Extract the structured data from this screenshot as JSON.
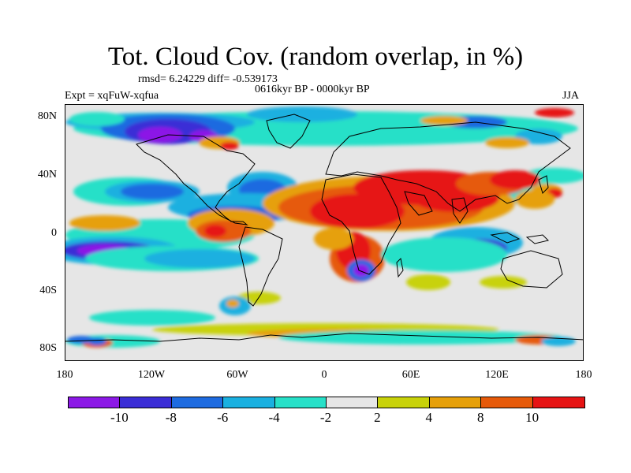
{
  "title": "Tot. Cloud Cov. (random overlap, in %)",
  "stats": "rmsd= 6.24229 diff= -0.539173",
  "period": "0616kyr BP - 0000kyr BP",
  "expt": "Expt = xqFuW-xqfua",
  "season": "JJA",
  "lat_labels": [
    "80N",
    "40N",
    "0",
    "40S",
    "80S"
  ],
  "lon_labels": [
    "180",
    "120W",
    "60W",
    "0",
    "60E",
    "120E",
    "180"
  ],
  "colorbar": {
    "labels": [
      "-10",
      "-8",
      "-6",
      "-4",
      "-2",
      "2",
      "4",
      "8",
      "10"
    ],
    "colors": [
      "#8c19e6",
      "#3a2dd6",
      "#1e6be0",
      "#1ab0e0",
      "#27e0c8",
      "#e6e6e6",
      "#c8d20a",
      "#e6a00a",
      "#e65a0a",
      "#e61414"
    ]
  }
}
